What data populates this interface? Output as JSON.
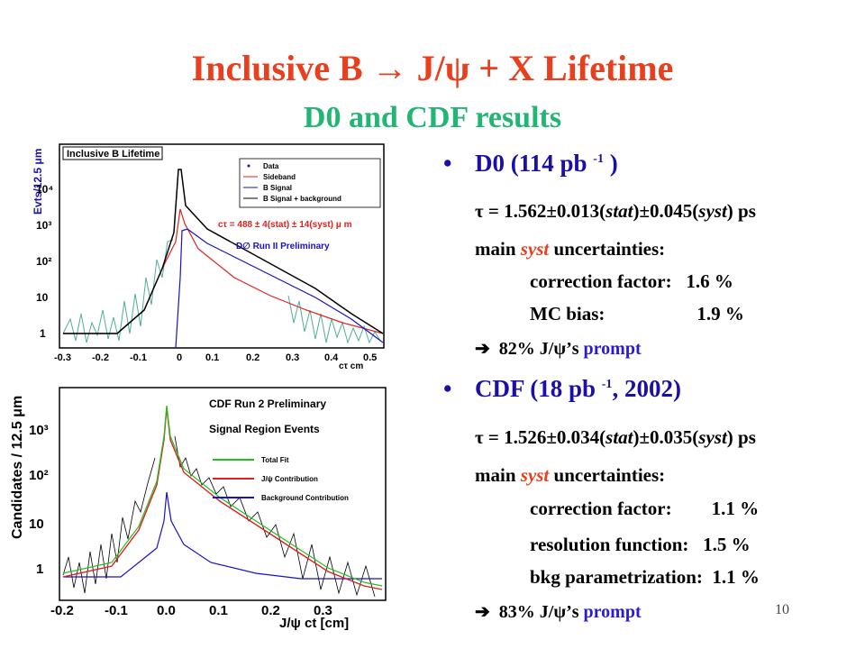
{
  "title": "Inclusive B  →  J/ψ + X Lifetime",
  "subtitle": "D0 and CDF results",
  "d0": {
    "heading": "D0    (114 pb ",
    "heading_sup": "-1",
    "heading_end": " )",
    "tau_prefix": "τ = 1.562±0.013(",
    "tau_stat": "stat",
    "tau_mid": ")±0.045(",
    "tau_syst": "syst",
    "tau_suffix": ") ps",
    "main_prefix": "main ",
    "main_syst": "syst",
    "main_suffix": " uncertainties:",
    "items": [
      {
        "label": "correction factor:",
        "value": "1.6 %"
      },
      {
        "label": "MC bias:",
        "value": "1.9 %"
      }
    ],
    "prompt_arrow": "➔",
    "prompt_text": "82% J/ψ’s ",
    "prompt_word": "prompt"
  },
  "cdf": {
    "heading": "CDF (18 pb ",
    "heading_sup": "-1",
    "heading_end": ",  2002)",
    "tau_prefix": "τ = 1.526±0.034(",
    "tau_stat": "stat",
    "tau_mid": ")±0.035(",
    "tau_syst": "syst",
    "tau_suffix": ") ps",
    "main_prefix": "main ",
    "main_syst": "syst",
    "main_suffix": " uncertainties:",
    "items": [
      {
        "label": "correction factor:",
        "value": "1.1 %"
      },
      {
        "label": "resolution function:",
        "value": "1.5 %"
      },
      {
        "label": "bkg parametrization:",
        "value": "1.1 %"
      }
    ],
    "prompt_arrow": "➔",
    "prompt_text": "83% J/ψ’s ",
    "prompt_word": "prompt"
  },
  "page_number": "10",
  "chart_data": [
    {
      "type": "line",
      "title": "Inclusive B Lifetime",
      "ylabel": "Evts/12.5 μm",
      "xlabel": "cτ cm",
      "log_y": true,
      "xlim": [
        -0.3,
        0.5
      ],
      "x_ticks": [
        "-0.3",
        "-0.2",
        "-0.1",
        "0",
        "0.1",
        "0.2",
        "0.3",
        "0.4",
        "0.5"
      ],
      "y_ticks": [
        "1",
        "10",
        "10²",
        "10³",
        "10⁴"
      ],
      "legend": [
        "Data",
        "Sideband",
        "B Signal",
        "B Signal + background"
      ],
      "annotations": [
        "cτ = 488 ± 4(stat) ± 14(syst) μ m",
        "D∅ Run II Preliminary"
      ],
      "series": [
        {
          "name": "Sideband",
          "color": "#e02020"
        },
        {
          "name": "B Signal",
          "color": "#1a10c8"
        },
        {
          "name": "B Signal + background",
          "color": "#000000"
        }
      ]
    },
    {
      "type": "line",
      "title": "CDF Run 2 Preliminary",
      "subtitle": "Signal Region Events",
      "ylabel": "Candidates / 12.5 μm",
      "xlabel": "J/ψ ct [cm]",
      "log_y": true,
      "xlim": [
        -0.2,
        0.4
      ],
      "x_ticks": [
        "-0.2",
        "-0.1",
        "0.0",
        "0.1",
        "0.2",
        "0.3"
      ],
      "y_ticks": [
        "1",
        "10",
        "10²",
        "10³"
      ],
      "legend": [
        "Total Fit",
        "J/ψ Contribution",
        "Background Contribution"
      ],
      "series": [
        {
          "name": "Total Fit",
          "color": "#20c020"
        },
        {
          "name": "J/ψ Contribution",
          "color": "#e02020"
        },
        {
          "name": "Background Contribution",
          "color": "#1a10c8"
        }
      ]
    }
  ]
}
